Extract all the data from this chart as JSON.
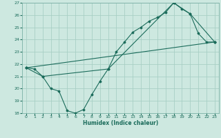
{
  "title": "",
  "xlabel": "Humidex (Indice chaleur)",
  "xlim": [
    -0.5,
    23.5
  ],
  "ylim": [
    18,
    27
  ],
  "xticks": [
    0,
    1,
    2,
    3,
    4,
    5,
    6,
    7,
    8,
    9,
    10,
    11,
    12,
    13,
    14,
    15,
    16,
    17,
    18,
    19,
    20,
    21,
    22,
    23
  ],
  "yticks": [
    18,
    19,
    20,
    21,
    22,
    23,
    24,
    25,
    26,
    27
  ],
  "background_color": "#cde8e0",
  "grid_color": "#a8cfc5",
  "line_color": "#1a6b5a",
  "line1_x": [
    0,
    1,
    2,
    3,
    4,
    5,
    6,
    7,
    8,
    9,
    10,
    11,
    12,
    13,
    14,
    15,
    16,
    17,
    18,
    19,
    20,
    21,
    22,
    23
  ],
  "line1_y": [
    21.7,
    21.6,
    21.0,
    20.0,
    19.8,
    18.2,
    18.0,
    18.3,
    19.5,
    20.6,
    21.6,
    23.0,
    23.8,
    24.6,
    25.0,
    25.5,
    25.8,
    26.2,
    27.0,
    26.5,
    26.1,
    24.5,
    23.8,
    23.8
  ],
  "line2_x": [
    0,
    2,
    10,
    18,
    20,
    23
  ],
  "line2_y": [
    21.7,
    21.0,
    21.6,
    27.0,
    26.1,
    23.8
  ],
  "line3_x": [
    0,
    23
  ],
  "line3_y": [
    21.7,
    23.8
  ]
}
